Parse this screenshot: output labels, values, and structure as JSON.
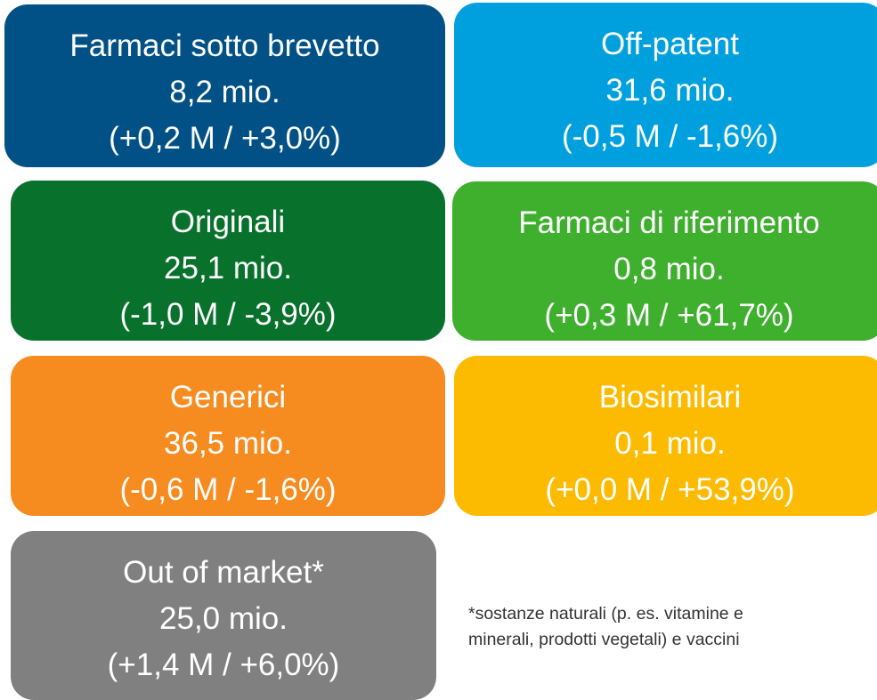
{
  "boxes": [
    {
      "title": "Farmaci sotto brevetto",
      "value": "8,2 mio.",
      "change": "(+0,2 M / +3,0%)"
    },
    {
      "title": "Off-patent",
      "value": "31,6 mio.",
      "change": "(-0,5 M / -1,6%)"
    },
    {
      "title": "Originali",
      "value": "25,1 mio.",
      "change": "(-1,0 M / -3,9%)"
    },
    {
      "title": "Farmaci di riferimento",
      "value": "0,8 mio.",
      "change": "(+0,3 M / +61,7%)"
    },
    {
      "title": "Generici",
      "value": "36,5 mio.",
      "change": "(-0,6 M / -1,6%)"
    },
    {
      "title": "Biosimilari",
      "value": "0,1 mio.",
      "change": "(+0,0 M / +53,9%)"
    },
    {
      "title": "Out of market*",
      "value": "25,0 mio.",
      "change": "(+1,4 M / +6,0%)"
    }
  ],
  "footnote": [
    "*sostanze naturali (p. es. vitamine e",
    "minerali, prodotti vegetali) e vaccini"
  ]
}
